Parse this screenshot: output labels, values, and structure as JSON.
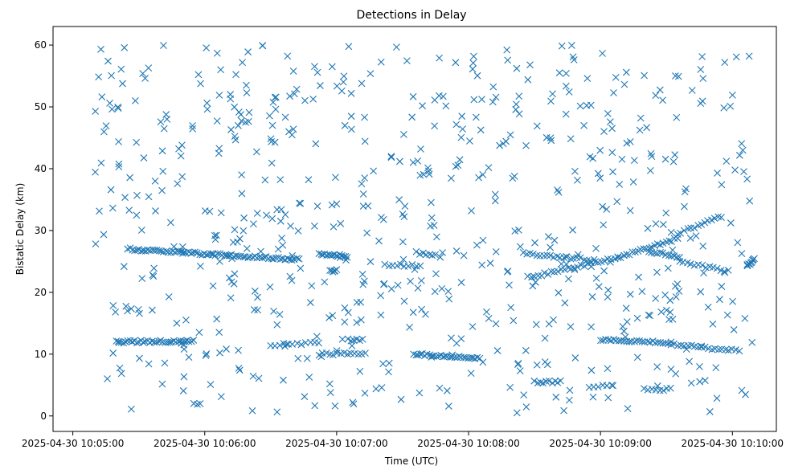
{
  "chart_data": {
    "type": "scatter",
    "title": "Detections in Delay",
    "xlabel": "Time (UTC)",
    "ylabel": "Bistatic Delay (km)",
    "x_unit": "time",
    "xlim": [
      "2025-04-30 10:04:51",
      "2025-04-30 10:10:20"
    ],
    "ylim": [
      -2.5,
      63
    ],
    "xticks": [
      "2025-04-30 10:05:00",
      "2025-04-30 10:06:00",
      "2025-04-30 10:07:00",
      "2025-04-30 10:08:00",
      "2025-04-30 10:09:00",
      "2025-04-30 10:10:00"
    ],
    "yticks": [
      "0",
      "10",
      "20",
      "30",
      "40",
      "50",
      "60"
    ],
    "yvalues": [
      0,
      10,
      20,
      30,
      40,
      50,
      60
    ],
    "grid": false,
    "marker": "x",
    "color": "#1f77b4",
    "tracks": [
      {
        "x": [
          "2025-04-30 10:05:25",
          "2025-04-30 10:06:10"
        ],
        "y": [
          27.0,
          26.0
        ],
        "n": 45
      },
      {
        "x": [
          "2025-04-30 10:06:10",
          "2025-04-30 10:06:43"
        ],
        "y": [
          26.0,
          25.3
        ],
        "n": 32
      },
      {
        "x": [
          "2025-04-30 10:06:52",
          "2025-04-30 10:07:05"
        ],
        "y": [
          26.3,
          25.8
        ],
        "n": 16
      },
      {
        "x": [
          "2025-04-30 10:06:57",
          "2025-04-30 10:07:00"
        ],
        "y": [
          23.5,
          23.5
        ],
        "n": 6
      },
      {
        "x": [
          "2025-04-30 10:07:22",
          "2025-04-30 10:07:38"
        ],
        "y": [
          24.4,
          24.4
        ],
        "n": 10
      },
      {
        "x": [
          "2025-04-30 10:07:38",
          "2025-04-30 10:07:45"
        ],
        "y": [
          26.3,
          26.1
        ],
        "n": 6
      },
      {
        "x": [
          "2025-04-30 10:08:25",
          "2025-04-30 10:08:57"
        ],
        "y": [
          26.3,
          25.2
        ],
        "n": 22
      },
      {
        "x": [
          "2025-04-30 10:08:27",
          "2025-04-30 10:09:08"
        ],
        "y": [
          22.4,
          25.6
        ],
        "n": 28
      },
      {
        "x": [
          "2025-04-30 10:09:08",
          "2025-04-30 10:09:35"
        ],
        "y": [
          25.6,
          28.7
        ],
        "n": 22
      },
      {
        "x": [
          "2025-04-30 10:09:35",
          "2025-04-30 10:09:55"
        ],
        "y": [
          29.5,
          32.3
        ],
        "n": 14
      },
      {
        "x": [
          "2025-04-30 10:09:22",
          "2025-04-30 10:09:36"
        ],
        "y": [
          26.6,
          25.7
        ],
        "n": 12
      },
      {
        "x": [
          "2025-04-30 10:09:36",
          "2025-04-30 10:09:58"
        ],
        "y": [
          25.0,
          23.4
        ],
        "n": 14
      },
      {
        "x": [
          "2025-04-30 10:10:07",
          "2025-04-30 10:10:10"
        ],
        "y": [
          24.4,
          25.5
        ],
        "n": 8
      },
      {
        "x": [
          "2025-04-30 10:05:20",
          "2025-04-30 10:05:55"
        ],
        "y": [
          12.0,
          12.1
        ],
        "n": 36
      },
      {
        "x": [
          "2025-04-30 10:06:30",
          "2025-04-30 10:06:52"
        ],
        "y": [
          11.5,
          11.8
        ],
        "n": 12
      },
      {
        "x": [
          "2025-04-30 10:06:52",
          "2025-04-30 10:07:13"
        ],
        "y": [
          10.0,
          10.0
        ],
        "n": 14
      },
      {
        "x": [
          "2025-04-30 10:07:05",
          "2025-04-30 10:07:12"
        ],
        "y": [
          12.3,
          12.3
        ],
        "n": 6
      },
      {
        "x": [
          "2025-04-30 10:07:35",
          "2025-04-30 10:08:05"
        ],
        "y": [
          10.0,
          9.4
        ],
        "n": 30
      },
      {
        "x": [
          "2025-04-30 10:08:30",
          "2025-04-30 10:08:42"
        ],
        "y": [
          5.5,
          5.5
        ],
        "n": 10
      },
      {
        "x": [
          "2025-04-30 10:09:00",
          "2025-04-30 10:09:32"
        ],
        "y": [
          12.3,
          11.8
        ],
        "n": 28
      },
      {
        "x": [
          "2025-04-30 10:09:32",
          "2025-04-30 10:09:46"
        ],
        "y": [
          11.6,
          11.2
        ],
        "n": 10
      },
      {
        "x": [
          "2025-04-30 10:09:46",
          "2025-04-30 10:10:03"
        ],
        "y": [
          11.0,
          10.6
        ],
        "n": 12
      },
      {
        "x": [
          "2025-04-30 10:08:55",
          "2025-04-30 10:09:05"
        ],
        "y": [
          4.8,
          4.8
        ],
        "n": 6
      },
      {
        "x": [
          "2025-04-30 10:09:20",
          "2025-04-30 10:09:32"
        ],
        "y": [
          4.3,
          4.3
        ],
        "n": 8
      },
      {
        "x": [
          "2025-04-30 10:05:55",
          "2025-04-30 10:05:58"
        ],
        "y": [
          2.0,
          2.0
        ],
        "n": 3
      }
    ],
    "noise": {
      "count": 640,
      "x_range": [
        "2025-04-30 10:05:09",
        "2025-04-30 10:10:09"
      ],
      "y_range": [
        0.5,
        60.0
      ]
    }
  }
}
